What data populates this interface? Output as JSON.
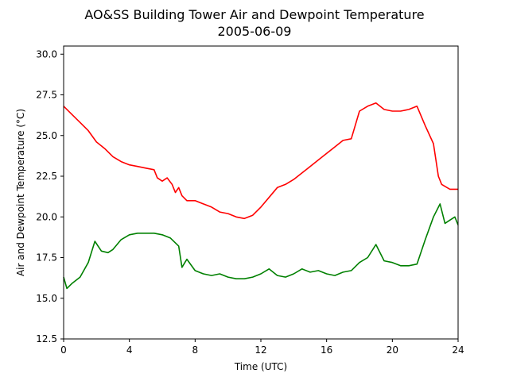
{
  "chart_data": {
    "type": "line",
    "title": "AO&SS Building Tower Air and Dewpoint Temperature",
    "subtitle": "2005-06-09",
    "xlabel": "Time (UTC)",
    "ylabel": "Air and Dewpoint Temperature (°C)",
    "xlim": [
      0,
      24
    ],
    "ylim": [
      12.5,
      30.5
    ],
    "xticks": [
      0,
      4,
      8,
      12,
      16,
      20,
      24
    ],
    "yticks": [
      "12.5",
      "15.0",
      "17.5",
      "20.0",
      "22.5",
      "25.0",
      "27.5",
      "30.0"
    ],
    "grid": false,
    "legend": "none",
    "series": [
      {
        "color": "#ff0000",
        "x": [
          0,
          0.5,
          1,
          1.5,
          2,
          2.5,
          3,
          3.5,
          4,
          4.5,
          5,
          5.5,
          5.7,
          6,
          6.3,
          6.6,
          6.8,
          7,
          7.2,
          7.5,
          8,
          8.5,
          9,
          9.5,
          10,
          10.5,
          11,
          11.5,
          12,
          12.5,
          13,
          13.5,
          14,
          14.5,
          15,
          15.5,
          16,
          16.5,
          17,
          17.5,
          18,
          18.5,
          19,
          19.5,
          20,
          20.5,
          21,
          21.5,
          22,
          22.5,
          22.8,
          23,
          23.5,
          24
        ],
        "y": [
          26.8,
          26.3,
          25.8,
          25.3,
          24.6,
          24.2,
          23.7,
          23.4,
          23.2,
          23.1,
          23.0,
          22.9,
          22.4,
          22.2,
          22.4,
          22.0,
          21.5,
          21.8,
          21.3,
          21.0,
          21.0,
          20.8,
          20.6,
          20.3,
          20.2,
          20.0,
          19.9,
          20.1,
          20.6,
          21.2,
          21.8,
          22.0,
          22.3,
          22.7,
          23.1,
          23.5,
          23.9,
          24.3,
          24.7,
          24.8,
          26.5,
          26.8,
          27.0,
          26.6,
          26.5,
          26.5,
          26.6,
          26.8,
          25.6,
          24.5,
          22.5,
          22.0,
          21.7,
          21.7
        ]
      },
      {
        "color": "#008000",
        "x": [
          0,
          0.2,
          0.5,
          1,
          1.5,
          1.9,
          2.3,
          2.7,
          3,
          3.5,
          4,
          4.5,
          5,
          5.5,
          6,
          6.5,
          7,
          7.2,
          7.5,
          8,
          8.5,
          9,
          9.5,
          10,
          10.5,
          11,
          11.5,
          12,
          12.5,
          13,
          13.5,
          14,
          14.5,
          15,
          15.5,
          16,
          16.5,
          17,
          17.5,
          18,
          18.5,
          19,
          19.5,
          20,
          20.5,
          21,
          21.5,
          22,
          22.5,
          22.9,
          23.2,
          23.5,
          23.8,
          24
        ],
        "y": [
          16.3,
          15.6,
          15.9,
          16.3,
          17.2,
          18.5,
          17.9,
          17.8,
          18.0,
          18.6,
          18.9,
          19.0,
          19.0,
          19.0,
          18.9,
          18.7,
          18.2,
          16.9,
          17.4,
          16.7,
          16.5,
          16.4,
          16.5,
          16.3,
          16.2,
          16.2,
          16.3,
          16.5,
          16.8,
          16.4,
          16.3,
          16.5,
          16.8,
          16.6,
          16.7,
          16.5,
          16.4,
          16.6,
          16.7,
          17.2,
          17.5,
          18.3,
          17.3,
          17.2,
          17.0,
          17.0,
          17.1,
          18.6,
          20.0,
          20.8,
          19.6,
          19.8,
          20.0,
          19.5
        ]
      }
    ]
  }
}
